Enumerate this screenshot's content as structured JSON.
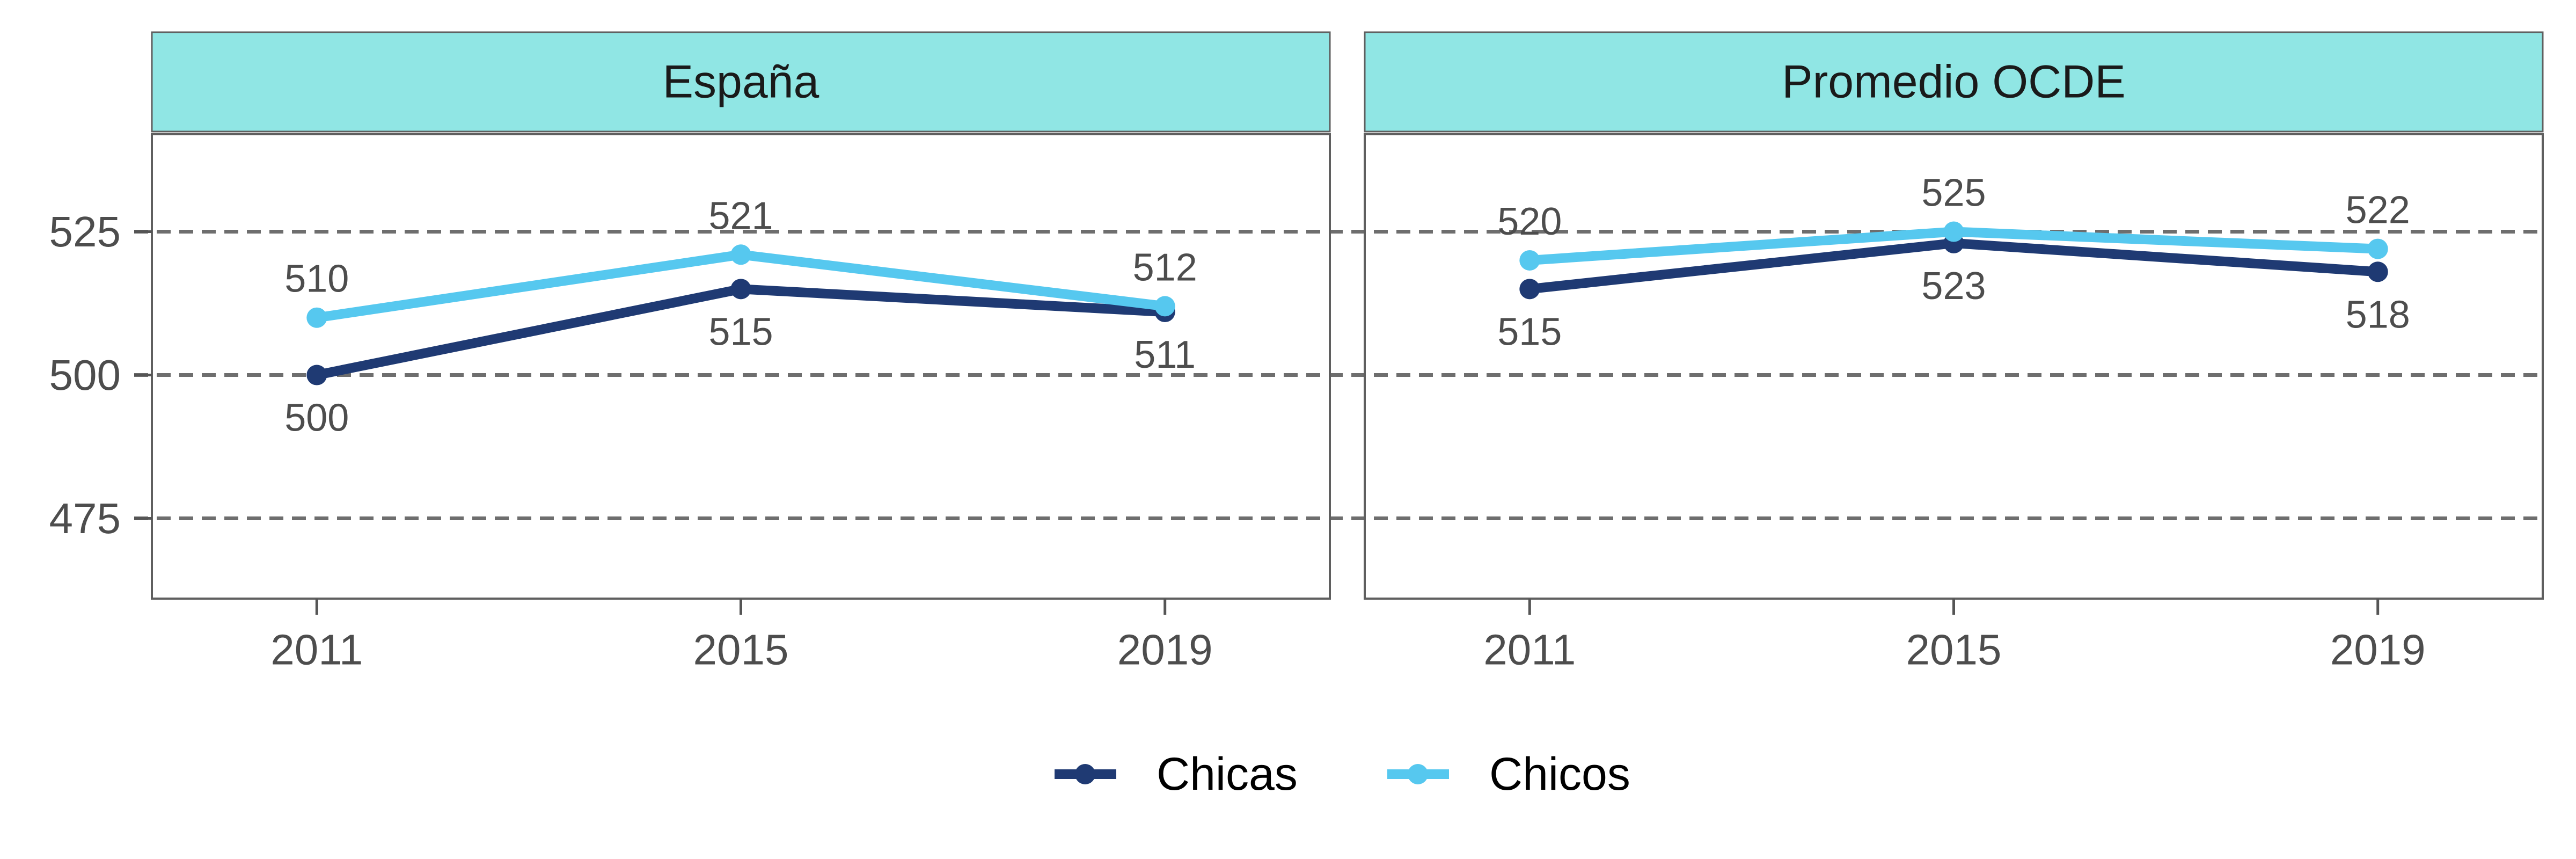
{
  "chart_data": {
    "type": "line",
    "x": [
      "2011",
      "2015",
      "2019"
    ],
    "y_ticks": [
      475,
      500,
      525
    ],
    "ylim": [
      461,
      542
    ],
    "grid": "horizontal dashed",
    "legend_position": "bottom",
    "colors": {
      "Chicas": "#1f3a73",
      "Chicos": "#56c8ef",
      "strip": "#90e6e4"
    },
    "panels": [
      {
        "title": "España",
        "series": [
          {
            "name": "Chicas",
            "values": [
              500,
              515,
              511
            ],
            "labels": [
              "500",
              "515",
              "511"
            ]
          },
          {
            "name": "Chicos",
            "values": [
              510,
              521,
              512
            ],
            "labels": [
              "510",
              "521",
              "512"
            ]
          }
        ]
      },
      {
        "title": "Promedio OCDE",
        "series": [
          {
            "name": "Chicas",
            "values": [
              515,
              523,
              518
            ],
            "labels": [
              "515",
              "523",
              "518"
            ]
          },
          {
            "name": "Chicos",
            "values": [
              520,
              525,
              522
            ],
            "labels": [
              "520",
              "525",
              "522"
            ]
          }
        ]
      }
    ]
  },
  "legend": {
    "items": [
      "Chicas",
      "Chicos"
    ]
  }
}
